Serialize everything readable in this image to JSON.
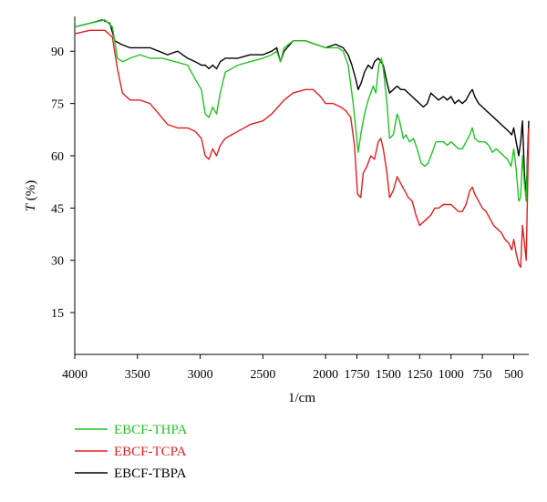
{
  "chart_data": {
    "type": "line",
    "xlabel": "1/cm",
    "ylabel_main": "T",
    "ylabel_unit": " (%)",
    "xlim": [
      4000,
      380
    ],
    "ylim": [
      3,
      100
    ],
    "x_ticks": [
      4000,
      3500,
      3000,
      2500,
      2000,
      1750,
      1500,
      1250,
      1000,
      750,
      500
    ],
    "x_tick_labels": [
      "4000",
      "3500",
      "3000",
      "2500",
      "2000",
      "1750",
      "1500",
      "1250",
      "1000",
      "750",
      "500"
    ],
    "y_ticks": [
      15,
      30,
      45,
      60,
      75,
      90
    ],
    "y_tick_labels": [
      "15",
      "30",
      "45",
      "60",
      "75",
      "90"
    ],
    "grid": false,
    "legend_position": "bottom-left",
    "series": [
      {
        "name": "EBCF-THPA",
        "color": "#22c322",
        "points": [
          [
            4000,
            97
          ],
          [
            3880,
            98
          ],
          [
            3760,
            99
          ],
          [
            3700,
            97
          ],
          [
            3660,
            88
          ],
          [
            3620,
            87
          ],
          [
            3560,
            88
          ],
          [
            3480,
            89
          ],
          [
            3400,
            88
          ],
          [
            3300,
            88
          ],
          [
            3200,
            87
          ],
          [
            3100,
            86
          ],
          [
            3040,
            82
          ],
          [
            2990,
            79
          ],
          [
            2960,
            72
          ],
          [
            2930,
            71
          ],
          [
            2900,
            74
          ],
          [
            2870,
            72
          ],
          [
            2840,
            78
          ],
          [
            2800,
            84
          ],
          [
            2700,
            86
          ],
          [
            2600,
            87
          ],
          [
            2500,
            88
          ],
          [
            2430,
            89
          ],
          [
            2390,
            90
          ],
          [
            2360,
            87
          ],
          [
            2330,
            91
          ],
          [
            2260,
            93
          ],
          [
            2160,
            93
          ],
          [
            2080,
            92
          ],
          [
            2000,
            91
          ],
          [
            1900,
            91
          ],
          [
            1860,
            90
          ],
          [
            1820,
            86
          ],
          [
            1780,
            75
          ],
          [
            1740,
            61
          ],
          [
            1715,
            67
          ],
          [
            1690,
            72
          ],
          [
            1660,
            76
          ],
          [
            1620,
            80
          ],
          [
            1600,
            78
          ],
          [
            1575,
            86
          ],
          [
            1555,
            88
          ],
          [
            1540,
            85
          ],
          [
            1510,
            75
          ],
          [
            1490,
            65
          ],
          [
            1460,
            66
          ],
          [
            1430,
            72
          ],
          [
            1410,
            70
          ],
          [
            1380,
            65
          ],
          [
            1360,
            66
          ],
          [
            1330,
            64
          ],
          [
            1300,
            65
          ],
          [
            1270,
            62
          ],
          [
            1240,
            58
          ],
          [
            1210,
            57
          ],
          [
            1180,
            58
          ],
          [
            1150,
            61
          ],
          [
            1120,
            64
          ],
          [
            1090,
            64
          ],
          [
            1060,
            64
          ],
          [
            1030,
            63
          ],
          [
            1000,
            64
          ],
          [
            970,
            63
          ],
          [
            940,
            62
          ],
          [
            910,
            62
          ],
          [
            880,
            64
          ],
          [
            850,
            66
          ],
          [
            830,
            68
          ],
          [
            810,
            65
          ],
          [
            780,
            64
          ],
          [
            760,
            64
          ],
          [
            730,
            64
          ],
          [
            700,
            63
          ],
          [
            670,
            61
          ],
          [
            640,
            62
          ],
          [
            610,
            61
          ],
          [
            580,
            60
          ],
          [
            550,
            59
          ],
          [
            520,
            57
          ],
          [
            500,
            62
          ],
          [
            480,
            56
          ],
          [
            460,
            47
          ],
          [
            445,
            48
          ],
          [
            430,
            60
          ],
          [
            415,
            52
          ],
          [
            400,
            47
          ],
          [
            380,
            68
          ]
        ]
      },
      {
        "name": "EBCF-TCPA",
        "color": "#e01e1e",
        "points": [
          [
            4000,
            95
          ],
          [
            3880,
            96
          ],
          [
            3760,
            96
          ],
          [
            3700,
            94
          ],
          [
            3660,
            85
          ],
          [
            3620,
            78
          ],
          [
            3560,
            76
          ],
          [
            3480,
            76
          ],
          [
            3400,
            75
          ],
          [
            3330,
            72
          ],
          [
            3260,
            69
          ],
          [
            3180,
            68
          ],
          [
            3100,
            68
          ],
          [
            3040,
            67
          ],
          [
            2990,
            65
          ],
          [
            2960,
            60
          ],
          [
            2930,
            59
          ],
          [
            2900,
            62
          ],
          [
            2870,
            60
          ],
          [
            2840,
            63
          ],
          [
            2800,
            65
          ],
          [
            2700,
            67
          ],
          [
            2600,
            69
          ],
          [
            2500,
            70
          ],
          [
            2430,
            72
          ],
          [
            2380,
            74
          ],
          [
            2330,
            76
          ],
          [
            2260,
            78
          ],
          [
            2160,
            79
          ],
          [
            2100,
            79
          ],
          [
            2040,
            77
          ],
          [
            2000,
            75
          ],
          [
            1940,
            75
          ],
          [
            1880,
            74
          ],
          [
            1840,
            73
          ],
          [
            1800,
            71
          ],
          [
            1770,
            63
          ],
          [
            1745,
            49
          ],
          [
            1720,
            48
          ],
          [
            1700,
            55
          ],
          [
            1670,
            57
          ],
          [
            1640,
            60
          ],
          [
            1610,
            59
          ],
          [
            1580,
            64
          ],
          [
            1560,
            65
          ],
          [
            1540,
            62
          ],
          [
            1510,
            55
          ],
          [
            1490,
            48
          ],
          [
            1460,
            50
          ],
          [
            1430,
            54
          ],
          [
            1400,
            52
          ],
          [
            1370,
            50
          ],
          [
            1340,
            48
          ],
          [
            1310,
            47
          ],
          [
            1280,
            43
          ],
          [
            1250,
            40
          ],
          [
            1220,
            41
          ],
          [
            1190,
            42
          ],
          [
            1160,
            43
          ],
          [
            1130,
            45
          ],
          [
            1100,
            45
          ],
          [
            1060,
            46
          ],
          [
            1030,
            46
          ],
          [
            1000,
            46
          ],
          [
            970,
            45
          ],
          [
            940,
            44
          ],
          [
            910,
            44
          ],
          [
            880,
            46
          ],
          [
            850,
            50
          ],
          [
            830,
            51
          ],
          [
            810,
            49
          ],
          [
            780,
            47
          ],
          [
            750,
            45
          ],
          [
            720,
            44
          ],
          [
            690,
            42
          ],
          [
            660,
            40
          ],
          [
            630,
            39
          ],
          [
            600,
            38
          ],
          [
            570,
            36
          ],
          [
            540,
            35
          ],
          [
            515,
            33
          ],
          [
            500,
            36
          ],
          [
            480,
            32
          ],
          [
            460,
            29
          ],
          [
            445,
            28
          ],
          [
            430,
            40
          ],
          [
            415,
            35
          ],
          [
            400,
            30
          ],
          [
            380,
            68
          ]
        ]
      },
      {
        "name": "EBCF-TBPA",
        "color": "#000000",
        "points": [
          [
            4000,
            97
          ],
          [
            3880,
            98
          ],
          [
            3780,
            99
          ],
          [
            3720,
            98
          ],
          [
            3680,
            93
          ],
          [
            3630,
            92
          ],
          [
            3560,
            91
          ],
          [
            3480,
            91
          ],
          [
            3400,
            91
          ],
          [
            3330,
            90
          ],
          [
            3260,
            89
          ],
          [
            3180,
            90
          ],
          [
            3100,
            88
          ],
          [
            3040,
            87
          ],
          [
            2990,
            86
          ],
          [
            2960,
            86
          ],
          [
            2930,
            85
          ],
          [
            2900,
            86
          ],
          [
            2870,
            85
          ],
          [
            2840,
            87
          ],
          [
            2800,
            88
          ],
          [
            2700,
            88
          ],
          [
            2600,
            89
          ],
          [
            2500,
            89
          ],
          [
            2430,
            90
          ],
          [
            2390,
            91
          ],
          [
            2360,
            87
          ],
          [
            2330,
            90
          ],
          [
            2260,
            93
          ],
          [
            2160,
            93
          ],
          [
            2080,
            92
          ],
          [
            2000,
            91
          ],
          [
            1920,
            92
          ],
          [
            1860,
            91
          ],
          [
            1820,
            89
          ],
          [
            1790,
            86
          ],
          [
            1760,
            82
          ],
          [
            1740,
            79
          ],
          [
            1715,
            81
          ],
          [
            1690,
            84
          ],
          [
            1660,
            86
          ],
          [
            1630,
            85
          ],
          [
            1610,
            87
          ],
          [
            1580,
            88
          ],
          [
            1560,
            87
          ],
          [
            1540,
            86
          ],
          [
            1510,
            81
          ],
          [
            1490,
            78
          ],
          [
            1460,
            79
          ],
          [
            1430,
            80
          ],
          [
            1400,
            79
          ],
          [
            1370,
            79
          ],
          [
            1340,
            78
          ],
          [
            1310,
            77
          ],
          [
            1280,
            76
          ],
          [
            1250,
            75
          ],
          [
            1220,
            74
          ],
          [
            1190,
            75
          ],
          [
            1160,
            78
          ],
          [
            1130,
            77
          ],
          [
            1100,
            76
          ],
          [
            1060,
            77
          ],
          [
            1030,
            76
          ],
          [
            1000,
            77
          ],
          [
            970,
            75
          ],
          [
            940,
            76
          ],
          [
            910,
            75
          ],
          [
            880,
            76
          ],
          [
            850,
            78
          ],
          [
            830,
            79
          ],
          [
            810,
            77
          ],
          [
            780,
            75
          ],
          [
            750,
            74
          ],
          [
            720,
            73
          ],
          [
            690,
            72
          ],
          [
            660,
            71
          ],
          [
            630,
            70
          ],
          [
            600,
            69
          ],
          [
            570,
            68
          ],
          [
            540,
            67
          ],
          [
            515,
            66
          ],
          [
            500,
            68
          ],
          [
            480,
            64
          ],
          [
            460,
            60
          ],
          [
            445,
            64
          ],
          [
            430,
            70
          ],
          [
            415,
            55
          ],
          [
            400,
            48
          ],
          [
            390,
            60
          ],
          [
            380,
            70
          ]
        ]
      }
    ]
  }
}
